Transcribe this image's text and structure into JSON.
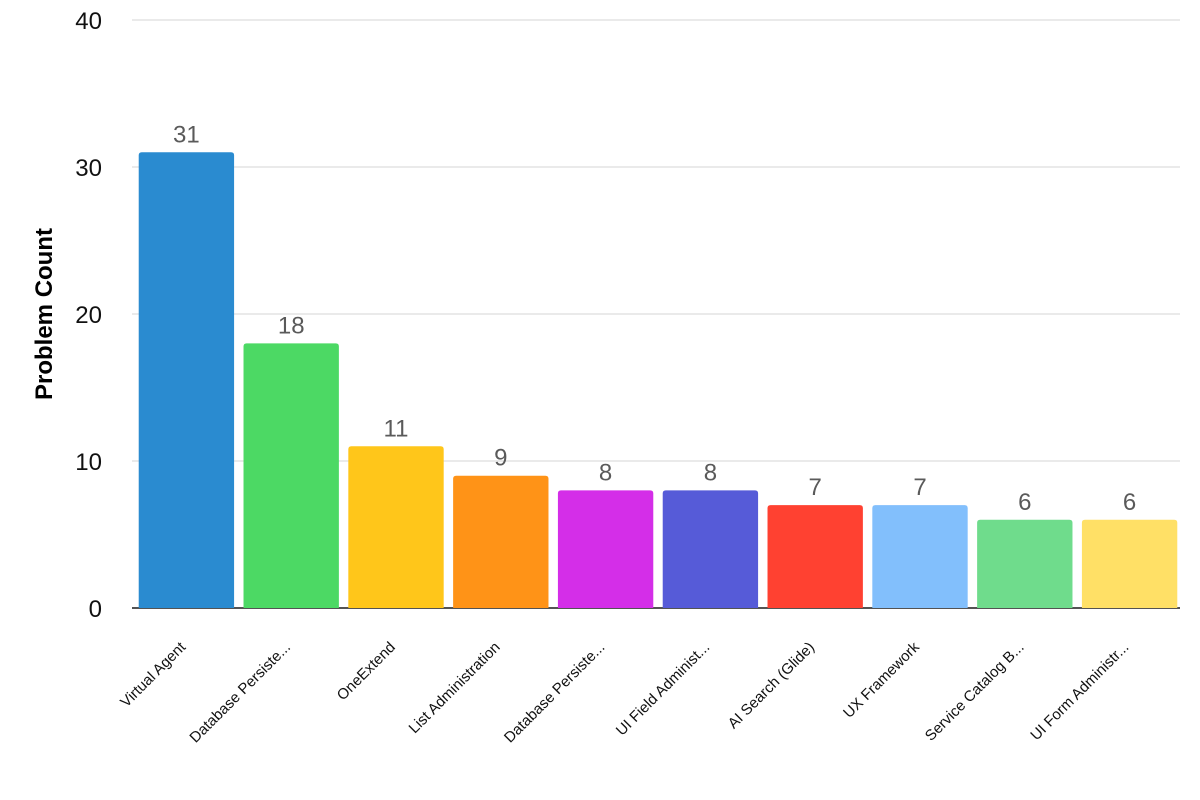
{
  "chart_data": {
    "type": "bar",
    "title": "",
    "xlabel": "",
    "ylabel": "Problem Count",
    "ylim": [
      0,
      40
    ],
    "yticks": [
      0,
      10,
      20,
      30,
      40
    ],
    "grid": true,
    "legend": "none",
    "categories": [
      "Virtual Agent",
      "Database Persiste...",
      "OneExtend",
      "List Administration",
      "Database Persiste...",
      "UI Field Administ...",
      "AI Search (Glide)",
      "UX Framework",
      "Service Catalog B...",
      "UI Form Administr..."
    ],
    "values": [
      31,
      18,
      11,
      9,
      8,
      8,
      7,
      7,
      6,
      6
    ],
    "colors": [
      "#2a8bd0",
      "#4cd964",
      "#ffc61a",
      "#ff9317",
      "#d42ee8",
      "#565bd8",
      "#ff4131",
      "#82bffc",
      "#6fdc8c",
      "#ffe066"
    ]
  }
}
